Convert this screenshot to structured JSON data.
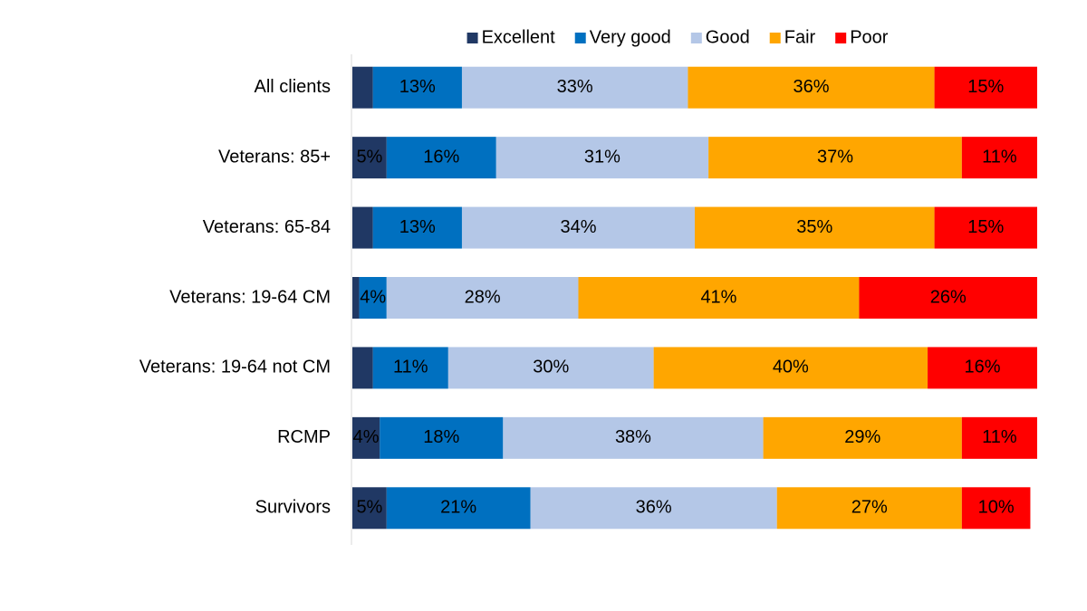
{
  "chart_data": {
    "type": "stacked-bar-horizontal",
    "categories": [
      "All clients",
      "Veterans: 85+",
      "Veterans: 65-84",
      "Veterans: 19-64 CM",
      "Veterans: 19-64 not CM",
      "RCMP",
      "Survivors"
    ],
    "xlim": [
      0,
      100
    ],
    "legend": "top",
    "series": [
      {
        "name": "Excellent",
        "color": "#203864",
        "values": [
          3,
          5,
          3,
          1,
          3,
          4,
          5
        ],
        "value_labels": [
          null,
          "5%",
          null,
          null,
          null,
          "4%",
          "5%"
        ]
      },
      {
        "name": "Very good",
        "color": "#0070c0",
        "values": [
          13,
          16,
          13,
          4,
          11,
          18,
          21
        ],
        "value_labels": [
          "13%",
          "16%",
          "13%",
          "4%",
          "11%",
          "18%",
          "21%"
        ]
      },
      {
        "name": "Good",
        "color": "#b4c7e7",
        "values": [
          33,
          31,
          34,
          28,
          30,
          38,
          36
        ],
        "value_labels": [
          "33%",
          "31%",
          "34%",
          "28%",
          "30%",
          "38%",
          "36%"
        ]
      },
      {
        "name": "Fair",
        "color": "#ffa600",
        "values": [
          36,
          37,
          35,
          41,
          40,
          29,
          27
        ],
        "value_labels": [
          "36%",
          "37%",
          "35%",
          "41%",
          "40%",
          "29%",
          "27%"
        ]
      },
      {
        "name": "Poor",
        "color": "#ff0000",
        "values": [
          15,
          11,
          15,
          26,
          16,
          11,
          10
        ],
        "value_labels": [
          "15%",
          "11%",
          "15%",
          "26%",
          "16%",
          "11%",
          "10%"
        ]
      }
    ]
  }
}
